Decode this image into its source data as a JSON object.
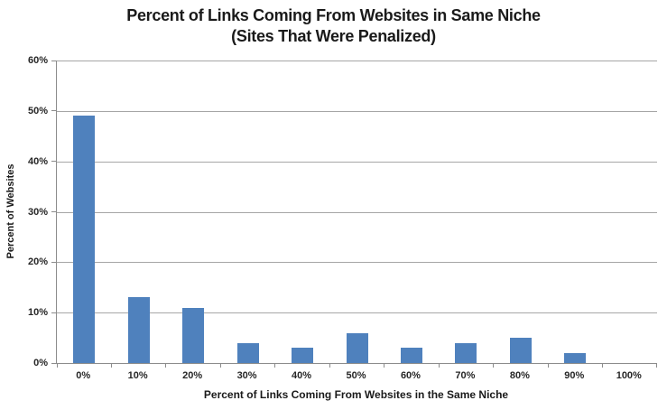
{
  "title": {
    "line1": "Percent of Links Coming From Websites in Same Niche",
    "line2": "(Sites That Were Penalized)"
  },
  "chart_data": {
    "type": "bar",
    "title": "Percent of Links Coming From Websites in Same Niche (Sites That Were Penalized)",
    "categories": [
      "0%",
      "10%",
      "20%",
      "30%",
      "40%",
      "50%",
      "60%",
      "70%",
      "80%",
      "90%",
      "100%"
    ],
    "values": [
      49,
      13,
      11,
      4,
      3,
      6,
      3,
      4,
      5,
      2,
      0
    ],
    "xlabel": "Percent of Links Coming From Websites in the Same Niche",
    "ylabel": "Percent of Websites",
    "ylim": [
      0,
      60
    ],
    "ytick_step": 10,
    "ytick_labels": [
      "0%",
      "10%",
      "20%",
      "30%",
      "40%",
      "50%",
      "60%"
    ],
    "grid": true,
    "legend": "none",
    "colors": {
      "bar": "#4f81bd",
      "gridline": "#a6a6a6",
      "axis": "#8c8c8c",
      "text": "#1a1a1a"
    }
  }
}
